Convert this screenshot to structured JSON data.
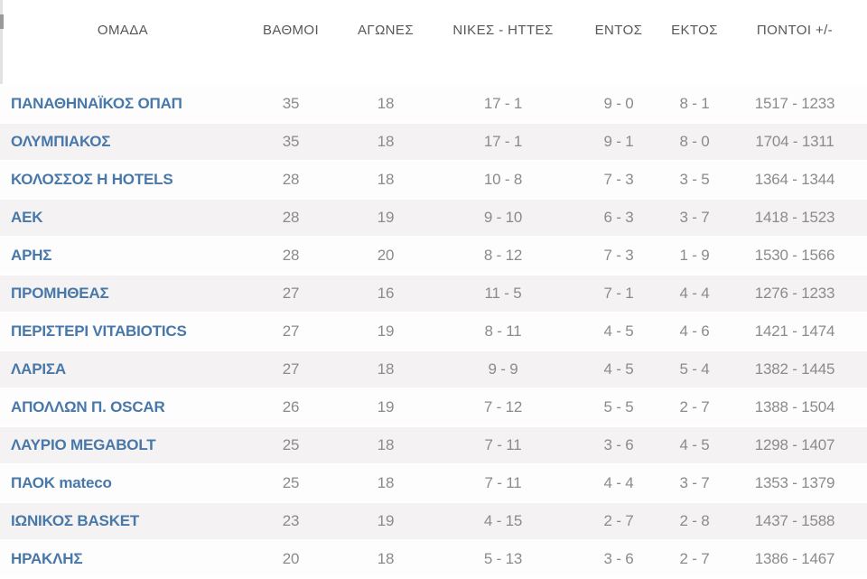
{
  "table": {
    "name": "basketball-league-standings",
    "headers": [
      {
        "key": "team",
        "label": "ΟΜΑΔΑ"
      },
      {
        "key": "points",
        "label": "ΒΑΘΜΟΙ"
      },
      {
        "key": "games",
        "label": "ΑΓΩΝΕΣ"
      },
      {
        "key": "wins_losses",
        "label": "ΝΙΚΕΣ - ΗΤΤΕΣ"
      },
      {
        "key": "home",
        "label": "ΕΝΤΟΣ"
      },
      {
        "key": "away",
        "label": "ΕΚΤΟΣ"
      },
      {
        "key": "points_plus_minus",
        "label": "ΠΟΝΤΟΙ +/-"
      }
    ],
    "rows": [
      {
        "team": "ΠΑΝΑΘΗΝΑΪΚΟΣ ΟΠΑΠ",
        "points": "35",
        "games": "18",
        "wins_losses": "17 - 1",
        "home": "9 - 0",
        "away": "8 - 1",
        "points_plus_minus": "1517 - 1233"
      },
      {
        "team": "ΟΛΥΜΠΙΑΚΟΣ",
        "points": "35",
        "games": "18",
        "wins_losses": "17 - 1",
        "home": "9 - 1",
        "away": "8 - 0",
        "points_plus_minus": "1704 - 1311"
      },
      {
        "team": "ΚΟΛΟΣΣΟΣ Η HOTELS",
        "points": "28",
        "games": "18",
        "wins_losses": "10 - 8",
        "home": "7 - 3",
        "away": "3 - 5",
        "points_plus_minus": "1364 - 1344"
      },
      {
        "team": "ΑΕΚ",
        "points": "28",
        "games": "19",
        "wins_losses": "9 - 10",
        "home": "6 - 3",
        "away": "3 - 7",
        "points_plus_minus": "1418 - 1523"
      },
      {
        "team": "ΑΡΗΣ",
        "points": "28",
        "games": "20",
        "wins_losses": "8 - 12",
        "home": "7 - 3",
        "away": "1 - 9",
        "points_plus_minus": "1530 - 1566"
      },
      {
        "team": "ΠΡΟΜΗΘΕΑΣ",
        "points": "27",
        "games": "16",
        "wins_losses": "11 - 5",
        "home": "7 - 1",
        "away": "4 - 4",
        "points_plus_minus": "1276 - 1233"
      },
      {
        "team": "ΠΕΡΙΣΤΕΡΙ VITABIOTICS",
        "points": "27",
        "games": "19",
        "wins_losses": "8 - 11",
        "home": "4 - 5",
        "away": "4 - 6",
        "points_plus_minus": "1421 - 1474"
      },
      {
        "team": "ΛΑΡΙΣΑ",
        "points": "27",
        "games": "18",
        "wins_losses": "9 - 9",
        "home": "4 - 5",
        "away": "5 - 4",
        "points_plus_minus": "1382 - 1445"
      },
      {
        "team": "ΑΠΟΛΛΩΝ Π. OSCAR",
        "points": "26",
        "games": "19",
        "wins_losses": "7 - 12",
        "home": "5 - 5",
        "away": "2 - 7",
        "points_plus_minus": "1388 - 1504"
      },
      {
        "team": "ΛΑΥΡΙΟ MEGABOLT",
        "points": "25",
        "games": "18",
        "wins_losses": "7 - 11",
        "home": "3 - 6",
        "away": "4 - 5",
        "points_plus_minus": "1298 - 1407"
      },
      {
        "team": "ΠΑΟΚ mateco",
        "points": "25",
        "games": "18",
        "wins_losses": "7 - 11",
        "home": "4 - 4",
        "away": "3 - 7",
        "points_plus_minus": "1353 - 1379"
      },
      {
        "team": "ΙΩΝΙΚΟΣ BASKET",
        "points": "23",
        "games": "19",
        "wins_losses": "4 - 15",
        "home": "2 - 7",
        "away": "2 - 8",
        "points_plus_minus": "1437 - 1588"
      },
      {
        "team": "ΗΡΑΚΛΗΣ",
        "points": "20",
        "games": "18",
        "wins_losses": "5 - 13",
        "home": "3 - 6",
        "away": "2 - 7",
        "points_plus_minus": "1386 - 1467"
      }
    ]
  },
  "colors": {
    "team_link": "#4878aa",
    "header_text": "#55575a",
    "cell_text": "#8c8a8a",
    "row_alt_bg": "#f4f2f2",
    "row_bg": "#fefdfd"
  }
}
